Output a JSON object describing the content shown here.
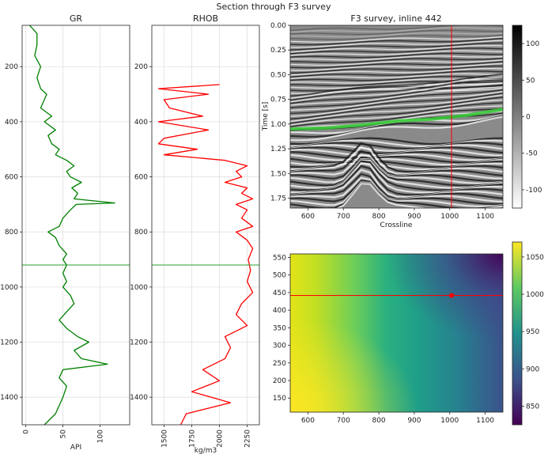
{
  "suptitle": "Section through F3 survey",
  "chart_data": [
    {
      "type": "line",
      "title": "GR",
      "xlabel": "API",
      "ylabel": "",
      "xlim": [
        -5,
        140
      ],
      "ylim": [
        1500,
        50
      ],
      "xticks": [
        0,
        50,
        100
      ],
      "yticks": [
        200,
        400,
        600,
        800,
        1000,
        1200,
        1400
      ],
      "grid": true,
      "line_color": "#008000",
      "marker_depth": 920,
      "marker_color": "#2ca02c",
      "series": [
        {
          "depth": [
            50,
            80,
            120,
            160,
            200,
            240,
            280,
            300,
            320,
            350,
            380,
            400,
            430,
            450,
            480,
            500,
            520,
            540,
            560,
            580,
            600,
            620,
            640,
            660,
            680,
            695,
            700,
            720,
            750,
            780,
            800,
            820,
            850,
            880,
            900,
            920,
            950,
            980,
            1000,
            1030,
            1060,
            1090,
            1120,
            1150,
            1180,
            1200,
            1230,
            1260,
            1280,
            1300,
            1330,
            1360,
            1400,
            1430,
            1460,
            1500
          ],
          "api": [
            5,
            15,
            15,
            12,
            20,
            15,
            20,
            28,
            25,
            20,
            35,
            25,
            40,
            30,
            35,
            45,
            40,
            55,
            65,
            55,
            60,
            75,
            62,
            70,
            65,
            120,
            68,
            60,
            50,
            45,
            30,
            40,
            45,
            55,
            50,
            55,
            50,
            55,
            50,
            60,
            65,
            55,
            45,
            55,
            70,
            85,
            65,
            75,
            110,
            50,
            45,
            55,
            50,
            45,
            40,
            25
          ]
        }
      ]
    },
    {
      "type": "line",
      "title": "RHOB",
      "xlabel": "kg/m3",
      "ylabel": "",
      "xlim": [
        1390,
        2360
      ],
      "ylim": [
        1500,
        50
      ],
      "xticks": [
        1500,
        1750,
        2000,
        2250
      ],
      "yticks": [
        200,
        400,
        600,
        800,
        1000,
        1200,
        1400
      ],
      "grid": true,
      "line_color": "#ff0000",
      "marker_depth": 920,
      "marker_color": "#2ca02c",
      "series": [
        {
          "depth": [
            265,
            280,
            300,
            320,
            350,
            380,
            400,
            430,
            460,
            480,
            500,
            520,
            540,
            560,
            580,
            600,
            620,
            640,
            660,
            680,
            700,
            720,
            750,
            780,
            800,
            830,
            860,
            900,
            940,
            980,
            1020,
            1060,
            1100,
            1140,
            1180,
            1220,
            1260,
            1300,
            1340,
            1380,
            1420,
            1460,
            1500
          ],
          "rhob": [
            2000,
            1450,
            1900,
            1500,
            1550,
            1850,
            1450,
            1900,
            1500,
            1450,
            1800,
            1500,
            2050,
            2250,
            2150,
            2200,
            2050,
            2250,
            2200,
            2300,
            2150,
            2250,
            2200,
            2300,
            2150,
            2250,
            2300,
            2260,
            2280,
            2250,
            2300,
            2200,
            2150,
            2250,
            2050,
            2100,
            2050,
            1850,
            2000,
            1750,
            2100,
            1700,
            1650
          ]
        }
      ]
    },
    {
      "type": "heatmap",
      "title": "F3 survey, inline 442",
      "xlabel": "Crossline",
      "ylabel": "Time [s]",
      "xlim": [
        550,
        1150
      ],
      "ylim": [
        1.85,
        0.0
      ],
      "xticks": [
        600,
        700,
        800,
        900,
        1000,
        1100
      ],
      "yticks": [
        0.0,
        0.25,
        0.5,
        0.75,
        1.0,
        1.25,
        1.5,
        1.75
      ],
      "colormap": "gray",
      "colorbar_ticks": [
        100,
        50,
        0,
        -50,
        -100
      ],
      "colorbar_range": [
        -125,
        125
      ],
      "vertical_line_crossline": 1005,
      "horizon": {
        "color": "#33cc33",
        "crossline": [
          550,
          650,
          750,
          850,
          950,
          1050,
          1150
        ],
        "time": [
          1.05,
          1.04,
          1.01,
          0.97,
          0.95,
          0.91,
          0.85
        ]
      }
    },
    {
      "type": "heatmap",
      "title": "",
      "xlabel": "",
      "ylabel": "",
      "xlim": [
        550,
        1150
      ],
      "ylim": [
        110,
        560
      ],
      "xticks": [
        600,
        700,
        800,
        900,
        1000,
        1100
      ],
      "yticks": [
        150,
        200,
        250,
        300,
        350,
        400,
        450,
        500,
        550
      ],
      "colormap": "viridis",
      "colorbar_ticks": [
        1050,
        1000,
        950,
        900,
        850
      ],
      "colorbar_range": [
        825,
        1070
      ],
      "inline_line": 442,
      "well_point": {
        "crossline": 1005,
        "inline": 442
      }
    }
  ]
}
